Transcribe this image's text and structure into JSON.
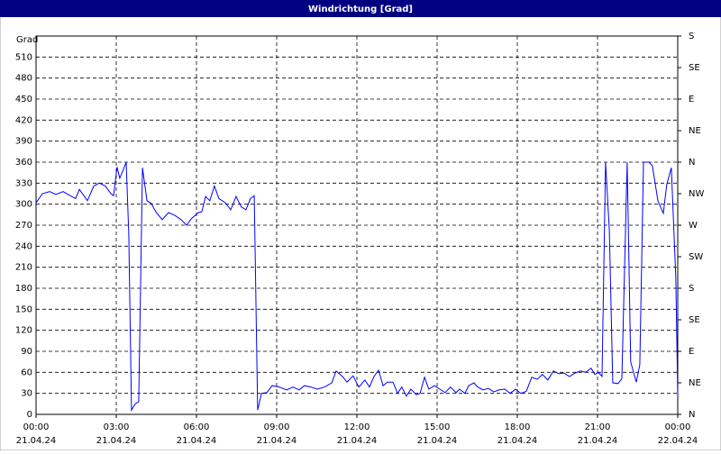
{
  "chart_data": {
    "type": "line",
    "title": "Windrichtung [Grad]",
    "y_label": "Grad",
    "color": "#0000ff",
    "grid": true,
    "xlim": [
      0,
      24
    ],
    "ylim": [
      0,
      540
    ],
    "y2lim": [
      0,
      540
    ],
    "xticks": [
      {
        "value": 0,
        "label": "00:00"
      },
      {
        "value": 3,
        "label": "03:00"
      },
      {
        "value": 6,
        "label": "06:00"
      },
      {
        "value": 9,
        "label": "09:00"
      },
      {
        "value": 12,
        "label": "12:00"
      },
      {
        "value": 15,
        "label": "15:00"
      },
      {
        "value": 18,
        "label": "18:00"
      },
      {
        "value": 21,
        "label": "21:00"
      },
      {
        "value": 24,
        "label": "00:00"
      }
    ],
    "xtick_dates": [
      "21.04.24",
      "21.04.24",
      "21.04.24",
      "21.04.24",
      "21.04.24",
      "21.04.24",
      "21.04.24",
      "21.04.24",
      "22.04.24"
    ],
    "yticks": [
      0,
      30,
      60,
      90,
      120,
      150,
      180,
      210,
      240,
      270,
      300,
      330,
      360,
      390,
      420,
      450,
      480,
      510
    ],
    "y2ticks": [
      {
        "value": 0,
        "label": "N"
      },
      {
        "value": 45,
        "label": "NE"
      },
      {
        "value": 90,
        "label": "E"
      },
      {
        "value": 135,
        "label": "SE"
      },
      {
        "value": 180,
        "label": "S"
      },
      {
        "value": 225,
        "label": "SW"
      },
      {
        "value": 270,
        "label": "W"
      },
      {
        "value": 315,
        "label": "NW"
      },
      {
        "value": 360,
        "label": "N"
      },
      {
        "value": 405,
        "label": "NE"
      },
      {
        "value": 450,
        "label": "E"
      },
      {
        "value": 495,
        "label": "SE"
      },
      {
        "value": 540,
        "label": "S"
      }
    ],
    "x": [
      0,
      0.24,
      0.51,
      0.74,
      1.01,
      1.28,
      1.48,
      1.62,
      1.92,
      2.16,
      2.36,
      2.59,
      2.8,
      2.9,
      3.03,
      3.13,
      3.24,
      3.37,
      3.47,
      3.57,
      3.71,
      3.84,
      3.98,
      4.15,
      4.31,
      4.48,
      4.72,
      4.95,
      5.19,
      5.42,
      5.63,
      5.8,
      6.07,
      6.2,
      6.34,
      6.5,
      6.67,
      6.84,
      7.08,
      7.28,
      7.48,
      7.68,
      7.85,
      8.02,
      8.16,
      8.29,
      8.43,
      8.63,
      8.83,
      9.1,
      9.37,
      9.61,
      9.84,
      10.04,
      10.28,
      10.52,
      10.79,
      11.06,
      11.22,
      11.46,
      11.63,
      11.86,
      12.07,
      12.3,
      12.47,
      12.64,
      12.81,
      12.98,
      13.14,
      13.35,
      13.52,
      13.68,
      13.85,
      14.02,
      14.22,
      14.36,
      14.53,
      14.69,
      14.9,
      15.1,
      15.3,
      15.5,
      15.71,
      15.84,
      16.04,
      16.18,
      16.38,
      16.52,
      16.72,
      16.92,
      17.12,
      17.32,
      17.53,
      17.73,
      17.93,
      18.13,
      18.34,
      18.54,
      18.74,
      18.94,
      19.14,
      19.35,
      19.55,
      19.75,
      19.95,
      20.16,
      20.36,
      20.56,
      20.76,
      20.9,
      21.03,
      21.17,
      21.3,
      21.44,
      21.57,
      21.77,
      21.91,
      22.11,
      22.24,
      22.45,
      22.58,
      22.72,
      22.92,
      23.05,
      23.26,
      23.46,
      23.59,
      23.76,
      23.93,
      24.0
    ],
    "values": [
      302,
      315,
      318,
      314,
      318,
      312,
      308,
      321,
      305,
      326,
      330,
      326,
      315,
      312,
      353,
      337,
      347,
      360,
      257,
      6,
      15,
      18,
      352,
      305,
      301,
      289,
      278,
      288,
      284,
      278,
      270,
      279,
      288,
      289,
      311,
      305,
      326,
      308,
      302,
      292,
      311,
      296,
      292,
      308,
      312,
      6,
      30,
      31,
      41,
      39,
      35,
      39,
      35,
      41,
      39,
      36,
      39,
      45,
      62,
      54,
      46,
      55,
      39,
      49,
      39,
      54,
      63,
      41,
      46,
      46,
      30,
      39,
      26,
      36,
      28,
      30,
      53,
      36,
      41,
      36,
      31,
      39,
      31,
      36,
      30,
      41,
      45,
      39,
      35,
      37,
      32,
      35,
      36,
      30,
      36,
      30,
      33,
      53,
      50,
      57,
      49,
      62,
      58,
      59,
      54,
      59,
      62,
      60,
      66,
      57,
      60,
      54,
      360,
      263,
      45,
      44,
      51,
      360,
      75,
      46,
      71,
      360,
      360,
      355,
      305,
      287,
      328,
      352,
      193,
      26
    ]
  }
}
